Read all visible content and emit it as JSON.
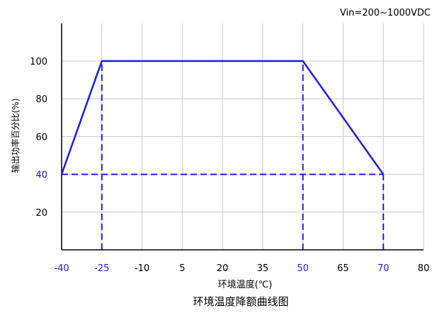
{
  "chart_data": {
    "type": "line",
    "title": "环境温度降额曲线图",
    "annotation": "Vin=200~1000VDC",
    "xlabel": "环境温度(℃)",
    "ylabel": "输出功率百分比(%)",
    "x_ticks": [
      "-40",
      "-25",
      "-10",
      "5",
      "20",
      "35",
      "50",
      "65",
      "70",
      "80"
    ],
    "x_tick_values": [
      -40,
      -25,
      -10,
      5,
      20,
      35,
      50,
      65,
      70,
      80
    ],
    "x_highlight_ticks": [
      "-40",
      "-25",
      "50",
      "70"
    ],
    "y_ticks": [
      "20",
      "40",
      "60",
      "80",
      "100"
    ],
    "y_tick_values": [
      20,
      40,
      60,
      80,
      100
    ],
    "y_highlight_ticks": [
      "40"
    ],
    "xlim": [
      -40,
      80
    ],
    "ylim": [
      0,
      100
    ],
    "grid": true,
    "series": [
      {
        "x": [
          -40,
          -25,
          50,
          70
        ],
        "y": [
          40,
          100,
          100,
          40
        ]
      }
    ],
    "reference_lines": [
      {
        "points": [
          [
            -40,
            40
          ],
          [
            70,
            40
          ]
        ]
      },
      {
        "points": [
          [
            -25,
            0
          ],
          [
            -25,
            100
          ]
        ]
      },
      {
        "points": [
          [
            50,
            0
          ],
          [
            50,
            100
          ]
        ]
      },
      {
        "points": [
          [
            70,
            0
          ],
          [
            70,
            40
          ]
        ]
      }
    ],
    "colors": {
      "line": "#1f1fe0",
      "highlight_text": "#1f1fe0",
      "grid": "#c8c8c8",
      "axis": "#000000",
      "text": "#000000"
    }
  }
}
